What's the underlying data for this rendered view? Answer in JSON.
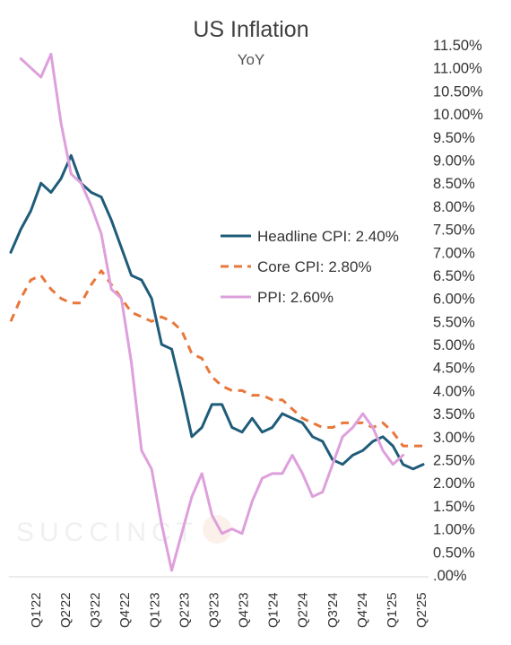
{
  "chart_data": {
    "type": "line",
    "title": "US Inflation",
    "subtitle": "YoY",
    "watermark": "SUCCINCT",
    "ylim": [
      0,
      11.5
    ],
    "y_ticks": [
      ".00%",
      "0.50%",
      "1.00%",
      "1.50%",
      "2.00%",
      "2.50%",
      "3.00%",
      "3.50%",
      "4.00%",
      "4.50%",
      "5.00%",
      "5.50%",
      "6.00%",
      "6.50%",
      "7.00%",
      "7.50%",
      "8.00%",
      "8.50%",
      "9.00%",
      "9.50%",
      "10.00%",
      "10.50%",
      "11.00%",
      "11.50%"
    ],
    "x_ticks": [
      "Q1'22",
      "Q2'22",
      "Q3'22",
      "Q4'22",
      "Q1'23",
      "Q2'23",
      "Q3'23",
      "Q4'23",
      "Q1'24",
      "Q2'24",
      "Q3'24",
      "Q4'24",
      "Q1'25",
      "Q2'25"
    ],
    "grid": false,
    "legend_position": "center-right",
    "series": [
      {
        "name": "Headline CPI: 2.40%",
        "color": "#1f5c7a",
        "style": "solid",
        "values": [
          7.0,
          7.5,
          7.9,
          8.5,
          8.3,
          8.6,
          9.1,
          8.5,
          8.3,
          8.2,
          7.7,
          7.1,
          6.5,
          6.4,
          6.0,
          5.0,
          4.9,
          4.0,
          3.0,
          3.2,
          3.7,
          3.7,
          3.2,
          3.1,
          3.4,
          3.1,
          3.2,
          3.5,
          3.4,
          3.3,
          3.0,
          2.9,
          2.5,
          2.4,
          2.6,
          2.7,
          2.9,
          3.0,
          2.8,
          2.4,
          2.3,
          2.4
        ]
      },
      {
        "name": "Core CPI: 2.80%",
        "color": "#e8773a",
        "style": "dashed",
        "values": [
          5.5,
          6.0,
          6.4,
          6.5,
          6.2,
          6.0,
          5.9,
          5.9,
          6.3,
          6.6,
          6.3,
          6.0,
          5.7,
          5.6,
          5.5,
          5.6,
          5.5,
          5.3,
          4.8,
          4.7,
          4.3,
          4.1,
          4.0,
          4.0,
          3.9,
          3.9,
          3.8,
          3.8,
          3.6,
          3.4,
          3.3,
          3.2,
          3.2,
          3.3,
          3.3,
          3.3,
          3.2,
          3.3,
          3.1,
          2.8,
          2.8,
          2.8
        ]
      },
      {
        "name": "PPI: 2.60%",
        "color": "#dea0dc",
        "style": "solid",
        "values": [
          null,
          11.2,
          11.0,
          10.8,
          11.3,
          9.8,
          8.7,
          8.5,
          8.0,
          7.4,
          6.2,
          6.0,
          4.6,
          2.7,
          2.3,
          1.1,
          0.1,
          0.9,
          1.7,
          2.2,
          1.3,
          0.9,
          1.0,
          0.9,
          1.6,
          2.1,
          2.2,
          2.2,
          2.6,
          2.2,
          1.7,
          1.8,
          2.4,
          3.0,
          3.2,
          3.5,
          3.2,
          2.7,
          2.4,
          2.6
        ]
      }
    ]
  }
}
